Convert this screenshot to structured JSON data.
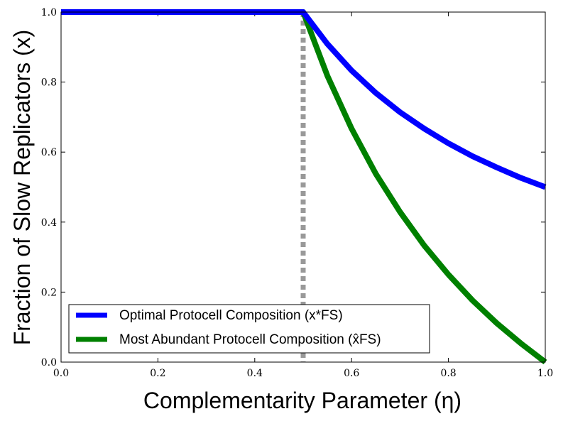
{
  "chart_data": {
    "type": "line",
    "xlabel": "Complementarity Parameter (η)",
    "ylabel": "Fraction of Slow Replicators (x)",
    "xlim": [
      0.0,
      1.0
    ],
    "ylim": [
      0.0,
      1.0
    ],
    "xticks": [
      "0.0",
      "0.2",
      "0.4",
      "0.6",
      "0.8",
      "1.0"
    ],
    "yticks": [
      "0.0",
      "0.2",
      "0.4",
      "0.6",
      "0.8",
      "1.0"
    ],
    "grid": false,
    "legend_position": "bottom-left",
    "vline": {
      "x": 0.5,
      "color": "#999999",
      "style": "dotted"
    },
    "series": [
      {
        "name": "Optimal Protocell Composition (x*FS)",
        "color": "#0000ff",
        "x": [
          0.0,
          0.5,
          0.55,
          0.6,
          0.65,
          0.7,
          0.75,
          0.8,
          0.85,
          0.9,
          0.95,
          1.0
        ],
        "y": [
          1.0,
          1.0,
          0.909,
          0.833,
          0.769,
          0.714,
          0.667,
          0.625,
          0.588,
          0.556,
          0.526,
          0.5
        ]
      },
      {
        "name": "Most Abundant Protocell Composition (x̂FS)",
        "color": "#008000",
        "x": [
          0.0,
          0.5,
          0.55,
          0.6,
          0.65,
          0.7,
          0.75,
          0.8,
          0.85,
          0.9,
          0.95,
          1.0
        ],
        "y": [
          1.0,
          1.0,
          0.818,
          0.667,
          0.538,
          0.429,
          0.333,
          0.25,
          0.176,
          0.111,
          0.053,
          0.0
        ]
      }
    ]
  }
}
